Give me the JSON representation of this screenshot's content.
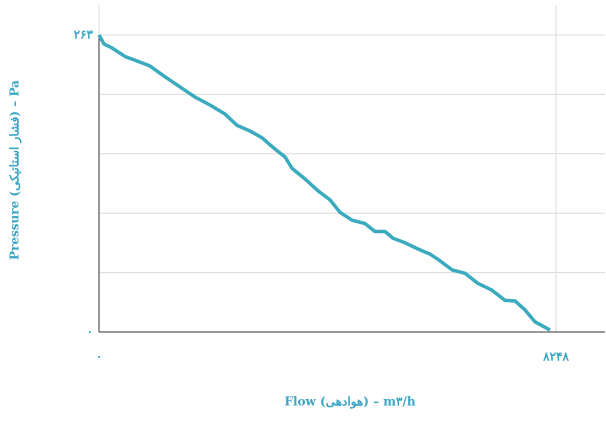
{
  "chart_data": {
    "type": "line",
    "x_label": "Flow (هوادهی) – m۳/h",
    "y_label": "Pressure (فشار استاتیکی) – Pa",
    "x": [
      0,
      90,
      235,
      469,
      740,
      920,
      1191,
      1462,
      1733,
      2003,
      2274,
      2491,
      2725,
      2942,
      3176,
      3357,
      3483,
      3718,
      3953,
      4169,
      4350,
      4566,
      4801,
      4981,
      5162,
      5306,
      5523,
      5758,
      5974,
      6155,
      6372,
      6606,
      6840,
      7093,
      7328,
      7508,
      7689,
      7869,
      8104,
      8140
    ],
    "series": [
      {
        "color": "#3aabbf",
        "values": [
          263,
          255,
          251.5,
          244,
          239,
          235.5,
          226,
          217,
          208,
          201,
          193,
          183,
          178,
          172,
          162,
          155,
          145,
          135.5,
          125,
          117,
          106,
          99,
          96,
          89,
          89,
          83,
          79,
          73.5,
          69,
          63,
          55,
          52,
          43,
          37,
          28,
          27.5,
          19.5,
          9,
          2.7,
          1.8
        ]
      }
    ],
    "xlim": [
      0,
      9132
    ],
    "ylim": [
      0,
      263
    ],
    "xticks": [
      {
        "value": 0,
        "label": "۰"
      },
      {
        "value": 8248,
        "label": "۸۲۴۸"
      }
    ],
    "yticks": [
      {
        "value": 0,
        "label": "۰"
      },
      {
        "value": 52.6,
        "label": null
      },
      {
        "value": 105.2,
        "label": null
      },
      {
        "value": 157.8,
        "label": null
      },
      {
        "value": 210.4,
        "label": null
      },
      {
        "value": 263,
        "label": "۲۶۳"
      }
    ],
    "grid": true,
    "text_color": "#3aa6c4"
  }
}
